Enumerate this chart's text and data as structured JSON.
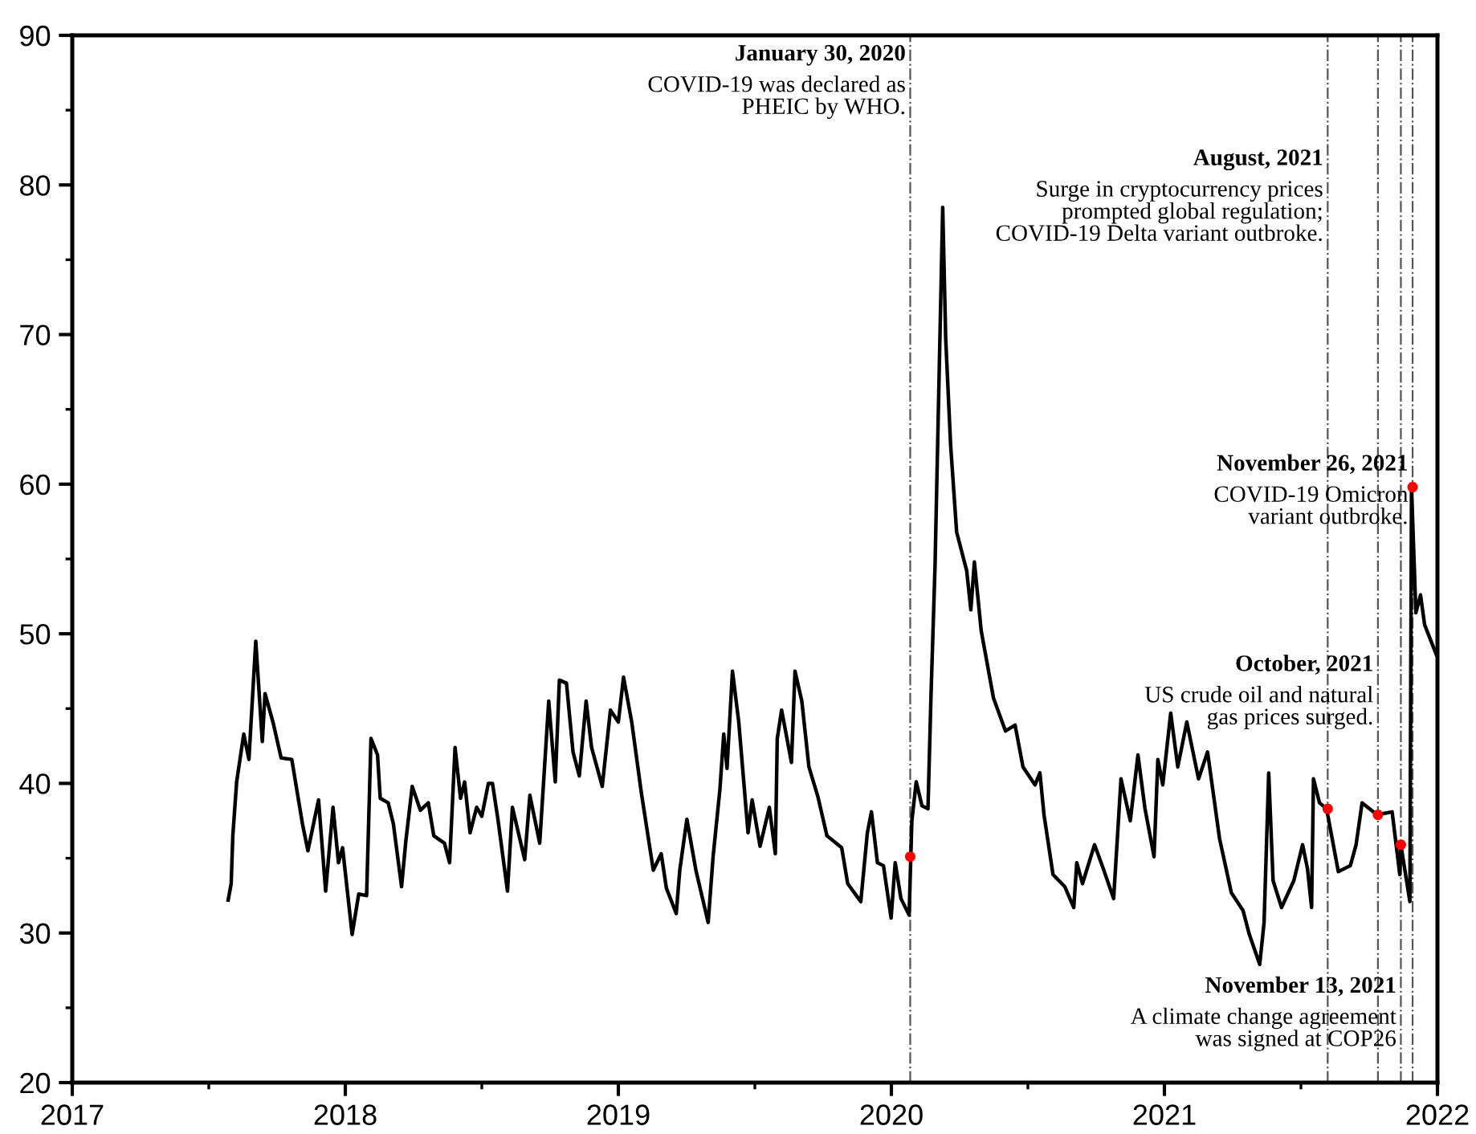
{
  "chart_data": {
    "type": "line",
    "xlim": [
      2017,
      2022
    ],
    "ylim": [
      20,
      90
    ],
    "xticks": [
      2017,
      {
        "value": 2017.5,
        "label": null
      },
      2018,
      {
        "value": 2018.5,
        "label": null
      },
      2019,
      {
        "value": 2019.5,
        "label": null
      },
      2020,
      {
        "value": 2020.5,
        "label": null
      },
      2021,
      {
        "value": 2021.5,
        "label": null
      },
      2022
    ],
    "yticks": [
      20,
      {
        "value": 25,
        "label": null
      },
      30,
      {
        "value": 35,
        "label": null
      },
      40,
      {
        "value": 45,
        "label": null
      },
      50,
      {
        "value": 55,
        "label": null
      },
      60,
      {
        "value": 65,
        "label": null
      },
      70,
      {
        "value": 75,
        "label": null
      },
      80,
      {
        "value": 85,
        "label": null
      },
      90
    ],
    "grid": false,
    "legend": false,
    "series": [
      {
        "color": "#000000",
        "marker": "none",
        "line_style": "solid",
        "x": [
          2017.571,
          2017.582,
          2017.588,
          2017.602,
          2017.628,
          2017.647,
          2017.672,
          2017.696,
          2017.706,
          2017.735,
          2017.765,
          2017.804,
          2017.843,
          2017.863,
          2017.902,
          2017.928,
          2017.955,
          2017.975,
          2017.99,
          2018.025,
          2018.049,
          2018.078,
          2018.094,
          2018.118,
          2018.128,
          2018.157,
          2018.176,
          2018.206,
          2018.222,
          2018.245,
          2018.275,
          2018.304,
          2018.324,
          2018.363,
          2018.382,
          2018.402,
          2018.422,
          2018.437,
          2018.457,
          2018.481,
          2018.5,
          2018.524,
          2018.539,
          2018.559,
          2018.594,
          2018.612,
          2018.657,
          2018.676,
          2018.712,
          2018.745,
          2018.769,
          2018.784,
          2018.81,
          2018.834,
          2018.857,
          2018.882,
          2018.902,
          2018.941,
          2018.971,
          2019.0,
          2019.019,
          2019.049,
          2019.084,
          2019.128,
          2019.157,
          2019.176,
          2019.212,
          2019.225,
          2019.251,
          2019.284,
          2019.329,
          2019.347,
          2019.372,
          2019.386,
          2019.398,
          2019.418,
          2019.441,
          2019.475,
          2019.49,
          2019.519,
          2019.553,
          2019.575,
          2019.582,
          2019.598,
          2019.634,
          2019.647,
          2019.672,
          2019.698,
          2019.731,
          2019.764,
          2019.818,
          2019.84,
          2019.888,
          2019.912,
          2019.927,
          2019.949,
          2019.971,
          2019.999,
          2020.014,
          2020.035,
          2020.065,
          2020.075,
          2020.091,
          2020.112,
          2020.134,
          2020.145,
          2020.16,
          2020.173,
          2020.188,
          2020.199,
          2020.217,
          2020.239,
          2020.276,
          2020.291,
          2020.304,
          2020.329,
          2020.374,
          2020.418,
          2020.453,
          2020.482,
          2020.526,
          2020.544,
          2020.559,
          2020.592,
          2020.635,
          2020.668,
          2020.679,
          2020.7,
          2020.744,
          2020.776,
          2020.814,
          2020.841,
          2020.875,
          2020.903,
          2020.929,
          2020.962,
          2020.976,
          2020.994,
          2021.023,
          2021.049,
          2021.082,
          2021.125,
          2021.158,
          2021.202,
          2021.245,
          2021.288,
          2021.311,
          2021.349,
          2021.365,
          2021.382,
          2021.398,
          2021.429,
          2021.474,
          2021.506,
          2021.524,
          2021.539,
          2021.546,
          2021.568,
          2021.594,
          2021.637,
          2021.681,
          2021.702,
          2021.724,
          2021.779,
          2021.834,
          2021.862,
          2021.866,
          2021.899,
          2021.905,
          2021.921,
          2021.938,
          2021.953,
          2021.996
        ],
        "values": [
          32.2,
          33.3,
          36.5,
          40.1,
          43.3,
          41.6,
          49.5,
          42.8,
          46.0,
          44.1,
          41.7,
          41.6,
          37.3,
          35.5,
          38.9,
          32.8,
          38.4,
          34.7,
          35.7,
          29.9,
          32.6,
          32.5,
          43.0,
          41.9,
          39.0,
          38.7,
          37.3,
          33.1,
          36.2,
          39.8,
          38.2,
          38.7,
          36.5,
          36.0,
          34.7,
          42.4,
          39.0,
          40.1,
          36.7,
          38.4,
          37.8,
          40.0,
          40.0,
          37.6,
          32.8,
          38.4,
          34.9,
          39.2,
          36.0,
          45.5,
          40.1,
          46.9,
          46.7,
          42.1,
          40.5,
          45.5,
          42.4,
          39.8,
          44.9,
          44.1,
          47.1,
          44.1,
          39.4,
          34.2,
          35.3,
          33.0,
          31.3,
          34.2,
          37.6,
          34.2,
          30.7,
          35.1,
          39.6,
          43.3,
          41.0,
          47.5,
          44.1,
          36.7,
          38.9,
          35.8,
          38.4,
          35.3,
          43.0,
          44.9,
          41.4,
          47.5,
          45.5,
          41.1,
          39.1,
          36.5,
          35.7,
          33.3,
          32.1,
          36.7,
          38.1,
          34.7,
          34.5,
          31.0,
          34.7,
          32.3,
          31.2,
          37.5,
          40.1,
          38.5,
          38.3,
          45.8,
          54.6,
          65.7,
          78.5,
          69.7,
          62.6,
          56.8,
          54.2,
          51.6,
          54.8,
          50.2,
          45.7,
          43.5,
          43.9,
          41.1,
          39.9,
          40.7,
          37.9,
          33.9,
          33.1,
          31.7,
          34.7,
          33.3,
          35.9,
          34.3,
          32.3,
          40.3,
          37.5,
          41.9,
          38.3,
          35.1,
          41.6,
          39.9,
          44.7,
          41.1,
          44.1,
          40.3,
          42.1,
          36.3,
          32.7,
          31.5,
          29.9,
          27.9,
          30.7,
          40.7,
          33.5,
          31.7,
          33.5,
          35.9,
          34.3,
          31.7,
          40.3,
          38.7,
          38.3,
          34.1,
          34.5,
          35.9,
          38.7,
          37.9,
          38.1,
          33.9,
          35.9,
          32.1,
          59.8,
          51.4,
          52.6,
          50.6,
          48.6
        ]
      },
      {
        "type": "scatter",
        "color": "#ff0000",
        "marker": "circle",
        "x": [
          2020.069,
          2021.598,
          2021.782,
          2021.866,
          2021.909
        ],
        "values": [
          35.1,
          38.3,
          37.9,
          35.9,
          59.8
        ]
      }
    ],
    "ref_lines": [
      {
        "axis": "x",
        "value": 2020.069,
        "color": "#555555",
        "line_style": "dashdot"
      },
      {
        "axis": "x",
        "value": 2021.598,
        "color": "#555555",
        "line_style": "dashdot"
      },
      {
        "axis": "x",
        "value": 2021.782,
        "color": "#555555",
        "line_style": "dashdot"
      },
      {
        "axis": "x",
        "value": 2021.866,
        "color": "#555555",
        "line_style": "dashdot"
      },
      {
        "axis": "x",
        "value": 2021.909,
        "color": "#555555",
        "line_style": "dashdot"
      }
    ],
    "annotations": [
      {
        "text": "January 30, 2020\nCOVID-19 was declared as\nPHEIC by WHO.",
        "x": 2020.069,
        "y": 89.4
      },
      {
        "text": "August, 2021\nSurge in cryptocurrency prices\nprompted global regulation;\nCOVID-19 Delta variant outbroke.",
        "x": 2021.598,
        "y": 82.4
      },
      {
        "text": "November 26, 2021\nCOVID-19 Omicron\nvariant outbroke.",
        "x": 2021.909,
        "y": 62.0
      },
      {
        "text": "October, 2021\nUS crude oil and natural\ngas prices surged.",
        "x": 2021.782,
        "y": 48.6
      },
      {
        "text": "November 13, 2021\nA climate change agreement\nwas signed at COP26",
        "x": 2021.866,
        "y": 27.1
      }
    ]
  }
}
